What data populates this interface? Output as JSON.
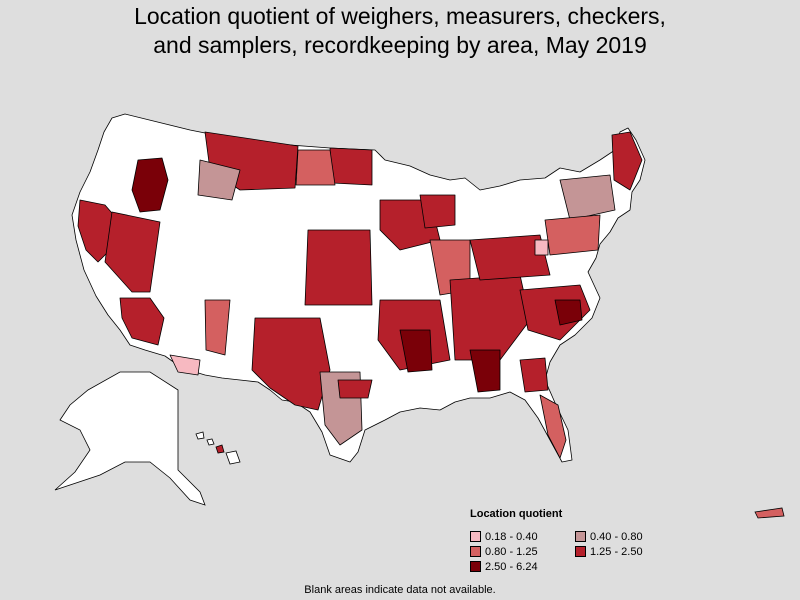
{
  "title_line1": "Location quotient of weighers, measurers, checkers,",
  "title_line2": "and samplers, recordkeeping by area, May 2019",
  "legend": {
    "title": "Location quotient",
    "items": [
      {
        "label": "0.18 - 0.40",
        "color": "#f7b9c1"
      },
      {
        "label": "0.40 - 0.80",
        "color": "#c49596"
      },
      {
        "label": "0.80 - 1.25",
        "color": "#d46060"
      },
      {
        "label": "1.25 - 2.50",
        "color": "#b5202b"
      },
      {
        "label": "2.50 - 6.24",
        "color": "#7a0008"
      }
    ]
  },
  "footnote": "Blank areas indicate data not available.",
  "colors": {
    "background": "#dedede",
    "no_data": "#ffffff",
    "border": "#000000"
  }
}
